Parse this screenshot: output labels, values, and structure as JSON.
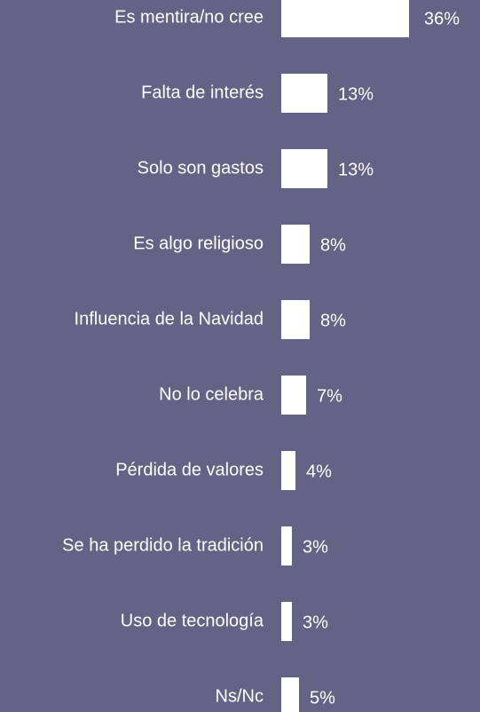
{
  "chart_data": {
    "type": "bar",
    "orientation": "horizontal",
    "categories": [
      "Es mentira/no cree",
      "Falta de interés",
      "Solo son gastos",
      "Es algo religioso",
      "Influencia de la Navidad",
      "No lo celebra",
      "Pérdida de valores",
      "Se ha perdido la tradición",
      "Uso de tecnología",
      "Ns/Nc"
    ],
    "values": [
      36,
      13,
      13,
      8,
      8,
      7,
      4,
      3,
      3,
      5
    ],
    "value_labels": [
      "36%",
      "13%",
      "13%",
      "8%",
      "8%",
      "7%",
      "4%",
      "3%",
      "3%",
      "5%"
    ],
    "color": "#ffffff"
  }
}
